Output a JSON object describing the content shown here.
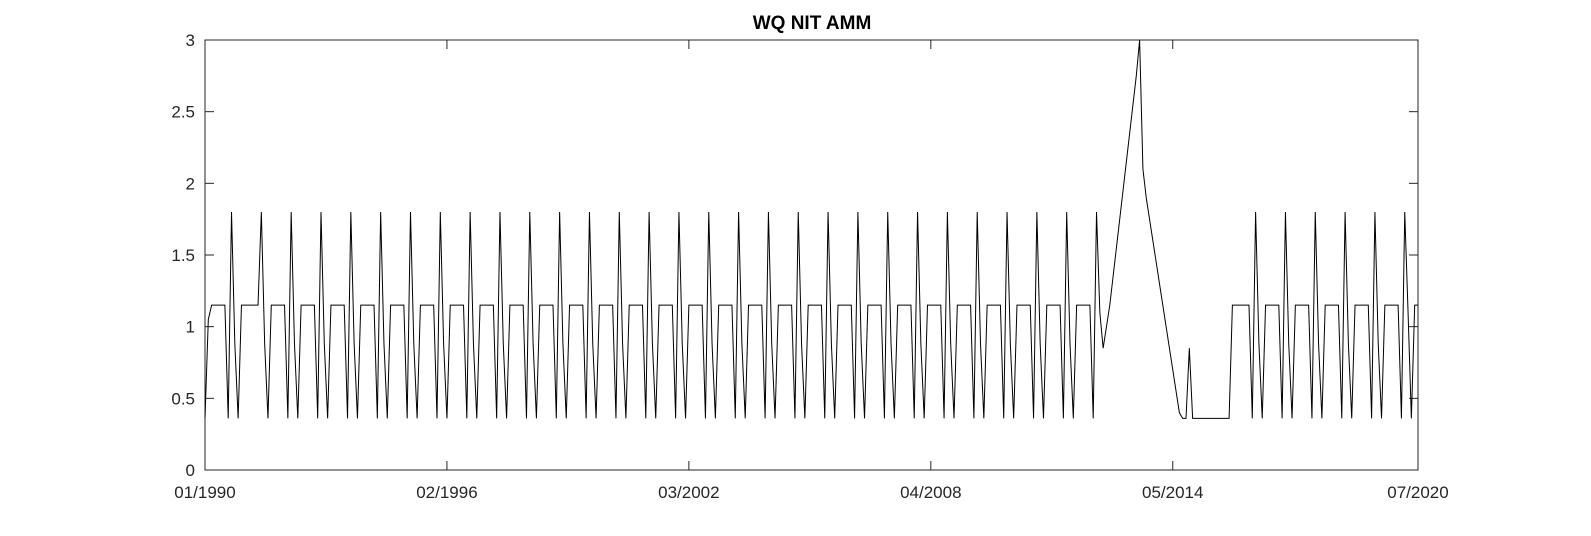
{
  "chart_data": {
    "type": "line",
    "title": "WQ NIT AMM",
    "xlabel": "",
    "ylabel": "",
    "x_range": [
      "1990-01",
      "2020-07"
    ],
    "ylim": [
      0,
      3
    ],
    "x_ticks": [
      "01/1990",
      "02/1996",
      "03/2002",
      "04/2008",
      "05/2014",
      "07/2020"
    ],
    "y_ticks": [
      "0",
      "0.5",
      "1",
      "1.5",
      "2",
      "2.5",
      "3"
    ],
    "grid": false,
    "line_color": "#000000",
    "series": [
      {
        "x": [
          "1990-01",
          "1990-02",
          "1990-03",
          "1990-04",
          "1990-05",
          "1990-06",
          "1990-07",
          "1990-08",
          "1990-09",
          "1990-10",
          "1990-11",
          "1990-12",
          "1991-01",
          "1991-02",
          "1991-03",
          "1991-04",
          "1991-05",
          "1991-06",
          "1991-07",
          "1991-08",
          "1991-09",
          "1991-10",
          "1991-11",
          "1991-12",
          "1992-01",
          "1992-02",
          "1992-03",
          "1992-04",
          "1992-05",
          "1992-06",
          "1992-07",
          "1992-08",
          "1992-09",
          "1992-10",
          "1992-11",
          "1992-12",
          "1993-01",
          "1993-02",
          "1993-03",
          "1993-04",
          "1993-05",
          "1993-06",
          "1993-07",
          "1993-08",
          "1993-09",
          "1993-10",
          "1993-11",
          "1993-12",
          "1994-01",
          "1994-02",
          "1994-03",
          "1994-04",
          "1994-05",
          "1994-06",
          "1994-07",
          "1994-08",
          "1994-09",
          "1994-10",
          "1994-11",
          "1994-12",
          "1995-01",
          "1995-02",
          "1995-03",
          "1995-04",
          "1995-05",
          "1995-06",
          "1995-07",
          "1995-08",
          "1995-09",
          "1995-10",
          "1995-11",
          "1995-12",
          "1996-01",
          "1996-02",
          "1996-03",
          "1996-04",
          "1996-05",
          "1996-06",
          "1996-07",
          "1996-08",
          "1996-09",
          "1996-10",
          "1996-11",
          "1996-12",
          "1997-01",
          "1997-02",
          "1997-03",
          "1997-04",
          "1997-05",
          "1997-06",
          "1997-07",
          "1997-08",
          "1997-09",
          "1997-10",
          "1997-11",
          "1997-12",
          "1998-01",
          "1998-02",
          "1998-03",
          "1998-04",
          "1998-05",
          "1998-06",
          "1998-07",
          "1998-08",
          "1998-09",
          "1998-10",
          "1998-11",
          "1998-12",
          "1999-01",
          "1999-02",
          "1999-03",
          "1999-04",
          "1999-05",
          "1999-06",
          "1999-07",
          "1999-08",
          "1999-09",
          "1999-10",
          "1999-11",
          "1999-12",
          "2000-01",
          "2000-02",
          "2000-03",
          "2000-04",
          "2000-05",
          "2000-06",
          "2000-07",
          "2000-08",
          "2000-09",
          "2000-10",
          "2000-11",
          "2000-12",
          "2001-01",
          "2001-02",
          "2001-03",
          "2001-04",
          "2001-05",
          "2001-06",
          "2001-07",
          "2001-08",
          "2001-09",
          "2001-10",
          "2001-11",
          "2001-12",
          "2002-01",
          "2002-02",
          "2002-03",
          "2002-04",
          "2002-05",
          "2002-06",
          "2002-07",
          "2002-08",
          "2002-09",
          "2002-10",
          "2002-11",
          "2002-12",
          "2003-01",
          "2003-02",
          "2003-03",
          "2003-04",
          "2003-05",
          "2003-06",
          "2003-07",
          "2003-08",
          "2003-09",
          "2003-10",
          "2003-11",
          "2003-12",
          "2004-01",
          "2004-02",
          "2004-03",
          "2004-04",
          "2004-05",
          "2004-06",
          "2004-07",
          "2004-08",
          "2004-09",
          "2004-10",
          "2004-11",
          "2004-12",
          "2005-01",
          "2005-02",
          "2005-03",
          "2005-04",
          "2005-05",
          "2005-06",
          "2005-07",
          "2005-08",
          "2005-09",
          "2005-10",
          "2005-11",
          "2005-12",
          "2006-01",
          "2006-02",
          "2006-03",
          "2006-04",
          "2006-05",
          "2006-06",
          "2006-07",
          "2006-08",
          "2006-09",
          "2006-10",
          "2006-11",
          "2006-12",
          "2007-01",
          "2007-02",
          "2007-03",
          "2007-04",
          "2007-05",
          "2007-06",
          "2007-07",
          "2007-08",
          "2007-09",
          "2007-10",
          "2007-11",
          "2007-12",
          "2008-01",
          "2008-02",
          "2008-03",
          "2008-04",
          "2008-05",
          "2008-06",
          "2008-07",
          "2008-08",
          "2008-09",
          "2008-10",
          "2008-11",
          "2008-12",
          "2009-01",
          "2009-02",
          "2009-03",
          "2009-04",
          "2009-05",
          "2009-06",
          "2009-07",
          "2009-08",
          "2009-09",
          "2009-10",
          "2009-11",
          "2009-12",
          "2010-01",
          "2010-02",
          "2010-03",
          "2010-04",
          "2010-05",
          "2010-06",
          "2010-07",
          "2010-08",
          "2010-09",
          "2010-10",
          "2010-11",
          "2010-12",
          "2011-01",
          "2011-02",
          "2011-03",
          "2011-04",
          "2011-05",
          "2011-06",
          "2011-07",
          "2011-08",
          "2011-09",
          "2011-10",
          "2011-11",
          "2011-12",
          "2012-01",
          "2012-02",
          "2012-03",
          "2012-04",
          "2012-05",
          "2012-06",
          "2012-07",
          "2012-08",
          "2012-09",
          "2012-10",
          "2012-11",
          "2012-12",
          "2013-01",
          "2013-02",
          "2013-03",
          "2013-04",
          "2013-05",
          "2013-06",
          "2013-07",
          "2013-08",
          "2013-09",
          "2013-10",
          "2013-11",
          "2013-12",
          "2014-01",
          "2014-02",
          "2014-03",
          "2014-04",
          "2014-05",
          "2014-06",
          "2014-07",
          "2014-08",
          "2014-09",
          "2014-10",
          "2014-11",
          "2014-12",
          "2015-01",
          "2015-02",
          "2015-03",
          "2015-04",
          "2015-05",
          "2015-06",
          "2015-07",
          "2015-08",
          "2015-09",
          "2015-10",
          "2015-11",
          "2015-12",
          "2016-01",
          "2016-02",
          "2016-03",
          "2016-04",
          "2016-05",
          "2016-06",
          "2016-07",
          "2016-08",
          "2016-09",
          "2016-10",
          "2016-11",
          "2016-12",
          "2017-01",
          "2017-02",
          "2017-03",
          "2017-04",
          "2017-05",
          "2017-06",
          "2017-07",
          "2017-08",
          "2017-09",
          "2017-10",
          "2017-11",
          "2017-12",
          "2018-01",
          "2018-02",
          "2018-03",
          "2018-04",
          "2018-05",
          "2018-06",
          "2018-07",
          "2018-08",
          "2018-09",
          "2018-10",
          "2018-11",
          "2018-12",
          "2019-01",
          "2019-02",
          "2019-03",
          "2019-04",
          "2019-05",
          "2019-06",
          "2019-07",
          "2019-08",
          "2019-09",
          "2019-10",
          "2019-11",
          "2019-12",
          "2020-01",
          "2020-02",
          "2020-03",
          "2020-04",
          "2020-05",
          "2020-06",
          "2020-07"
        ],
        "y": [
          0.36,
          1.05,
          1.15,
          1.15,
          1.15,
          1.15,
          1.15,
          0.36,
          1.8,
          0.88,
          0.36,
          1.15,
          1.15,
          1.15,
          1.15,
          1.15,
          1.15,
          1.8,
          0.88,
          0.36,
          1.15,
          1.15,
          1.15,
          1.15,
          1.15,
          0.36,
          1.8,
          0.88,
          0.36,
          1.15,
          1.15,
          1.15,
          1.15,
          1.15,
          0.36,
          1.8,
          0.88,
          0.36,
          1.15,
          1.15,
          1.15,
          1.15,
          1.15,
          0.36,
          1.8,
          0.88,
          0.36,
          1.15,
          1.15,
          1.15,
          1.15,
          1.15,
          0.36,
          1.8,
          0.88,
          0.36,
          1.15,
          1.15,
          1.15,
          1.15,
          1.15,
          0.36,
          1.8,
          0.88,
          0.36,
          1.15,
          1.15,
          1.15,
          1.15,
          1.15,
          0.36,
          1.8,
          0.88,
          0.36,
          1.15,
          1.15,
          1.15,
          1.15,
          1.15,
          0.36,
          1.8,
          0.88,
          0.36,
          1.15,
          1.15,
          1.15,
          1.15,
          1.15,
          0.36,
          1.8,
          0.88,
          0.36,
          1.15,
          1.15,
          1.15,
          1.15,
          1.15,
          0.36,
          1.8,
          0.88,
          0.36,
          1.15,
          1.15,
          1.15,
          1.15,
          1.15,
          0.36,
          1.8,
          0.88,
          0.36,
          1.15,
          1.15,
          1.15,
          1.15,
          1.15,
          0.36,
          1.8,
          0.88,
          0.36,
          1.15,
          1.15,
          1.15,
          1.15,
          1.15,
          0.36,
          1.8,
          0.88,
          0.36,
          1.15,
          1.15,
          1.15,
          1.15,
          1.15,
          0.36,
          1.8,
          0.88,
          0.36,
          1.15,
          1.15,
          1.15,
          1.15,
          1.15,
          0.36,
          1.8,
          0.88,
          0.36,
          1.15,
          1.15,
          1.15,
          1.15,
          1.15,
          0.36,
          1.8,
          0.88,
          0.36,
          1.15,
          1.15,
          1.15,
          1.15,
          1.15,
          0.36,
          1.8,
          0.88,
          0.36,
          1.15,
          1.15,
          1.15,
          1.15,
          1.15,
          0.36,
          1.8,
          0.88,
          0.36,
          1.15,
          1.15,
          1.15,
          1.15,
          1.15,
          0.36,
          1.8,
          0.88,
          0.36,
          1.15,
          1.15,
          1.15,
          1.15,
          1.15,
          0.36,
          1.8,
          0.88,
          0.36,
          1.15,
          1.15,
          1.15,
          1.15,
          1.15,
          0.36,
          1.8,
          0.88,
          0.36,
          1.15,
          1.15,
          1.15,
          1.15,
          1.15,
          0.36,
          1.8,
          0.88,
          0.36,
          1.15,
          1.15,
          1.15,
          1.15,
          1.15,
          0.36,
          1.8,
          0.88,
          0.36,
          1.15,
          1.15,
          1.15,
          1.15,
          1.15,
          0.36,
          1.8,
          0.88,
          0.36,
          1.15,
          1.15,
          1.15,
          1.15,
          1.15,
          0.36,
          1.8,
          0.88,
          0.36,
          1.15,
          1.15,
          1.15,
          1.15,
          1.15,
          0.36,
          1.8,
          0.88,
          0.36,
          1.15,
          1.15,
          1.15,
          1.15,
          1.15,
          0.36,
          1.8,
          0.88,
          0.36,
          1.15,
          1.15,
          1.15,
          1.15,
          1.15,
          0.36,
          1.8,
          0.88,
          0.36,
          1.15,
          1.15,
          1.15,
          1.15,
          1.15,
          0.36,
          1.8,
          1.1,
          0.85,
          1.0,
          1.15,
          1.35,
          1.55,
          1.75,
          1.95,
          2.15,
          2.35,
          2.55,
          2.75,
          3.0,
          2.1,
          1.9,
          1.75,
          1.6,
          1.45,
          1.3,
          1.15,
          1.0,
          0.85,
          0.7,
          0.55,
          0.4,
          0.36,
          0.36,
          0.85,
          0.36,
          0.36,
          0.36,
          0.36,
          0.36,
          0.36,
          0.36,
          0.36,
          0.36,
          0.36,
          0.36,
          0.36,
          1.15,
          1.15,
          1.15,
          1.15,
          1.15,
          1.15,
          0.36,
          1.8,
          0.88,
          0.36,
          1.15,
          1.15,
          1.15,
          1.15,
          1.15,
          0.36,
          1.8,
          0.88,
          0.36,
          1.15,
          1.15,
          1.15,
          1.15,
          1.15,
          0.36,
          1.8,
          0.88,
          0.36,
          1.15,
          1.15,
          1.15,
          1.15,
          1.15,
          0.36,
          1.8,
          0.88,
          0.36,
          1.15,
          1.15,
          1.15,
          1.15,
          1.15,
          0.36,
          1.8,
          0.88,
          0.36,
          1.15,
          1.15,
          1.15,
          1.15,
          1.15,
          0.36,
          1.8,
          1.1,
          0.36,
          1.15,
          1.15
        ]
      }
    ]
  }
}
